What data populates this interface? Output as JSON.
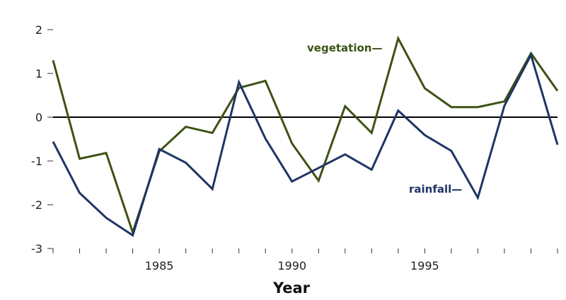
{
  "chart_data": {
    "type": "line",
    "title": "",
    "xlabel": "Year",
    "ylabel": "",
    "xlim": [
      1981,
      2000
    ],
    "ylim": [
      -3,
      2
    ],
    "yticks": [
      2,
      1,
      0,
      -1,
      -2,
      -3
    ],
    "ytick_labels": [
      "2",
      "1",
      "0",
      "-1",
      "-2",
      "-3"
    ],
    "xticks_labeled": [
      1985,
      1990,
      1995
    ],
    "xticks_minor": [
      1981,
      1982,
      1983,
      1984,
      1985,
      1986,
      1987,
      1988,
      1989,
      1990,
      1991,
      1992,
      1993,
      1994,
      1995,
      1996,
      1997,
      1998,
      1999,
      2000
    ],
    "grid": false,
    "zero_line": true,
    "x": [
      1981,
      1982,
      1983,
      1984,
      1985,
      1986,
      1987,
      1988,
      1989,
      1990,
      1991,
      1992,
      1993,
      1994,
      1995,
      1996,
      1997,
      1998,
      1999,
      2000
    ],
    "series": [
      {
        "name": "vegetation",
        "label": "vegetation—",
        "color": "#3d5214",
        "values": [
          1.3,
          -0.95,
          -0.82,
          -2.63,
          -0.78,
          -0.22,
          -0.36,
          0.67,
          0.83,
          -0.6,
          -1.45,
          0.25,
          -0.36,
          1.8,
          0.66,
          0.23,
          0.23,
          0.36,
          1.46,
          0.6
        ]
      },
      {
        "name": "rainfall",
        "label": "rainfall—",
        "color": "#1f3565",
        "values": [
          -0.56,
          -1.73,
          -2.3,
          -2.7,
          -0.73,
          -1.04,
          -1.64,
          0.8,
          -0.49,
          -1.47,
          -1.16,
          -0.85,
          -1.2,
          0.15,
          -0.41,
          -0.77,
          -1.84,
          0.26,
          1.42,
          -0.63
        ]
      }
    ]
  }
}
